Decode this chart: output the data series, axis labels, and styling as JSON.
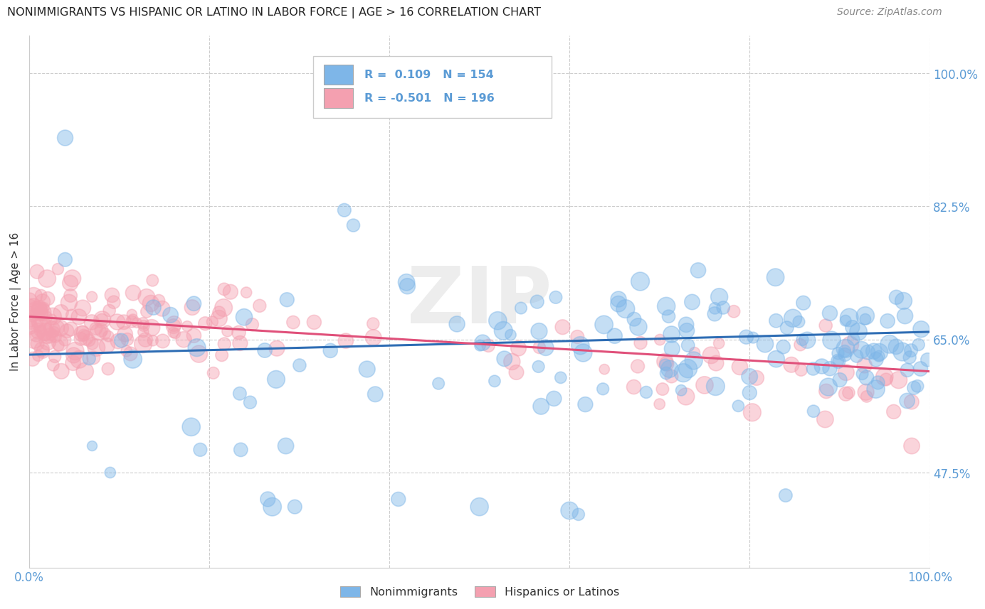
{
  "title": "NONIMMIGRANTS VS HISPANIC OR LATINO IN LABOR FORCE | AGE > 16 CORRELATION CHART",
  "source": "Source: ZipAtlas.com",
  "ylabel": "In Labor Force | Age > 16",
  "xlim": [
    0.0,
    1.0
  ],
  "ylim": [
    0.35,
    1.05
  ],
  "yticks": [
    0.475,
    0.65,
    0.825,
    1.0
  ],
  "ytick_labels": [
    "47.5%",
    "65.0%",
    "82.5%",
    "100.0%"
  ],
  "xticks": [
    0.0,
    0.2,
    0.4,
    0.6,
    0.8,
    1.0
  ],
  "xtick_labels": [
    "0.0%",
    "",
    "",
    "",
    "",
    "100.0%"
  ],
  "watermark": "ZIP",
  "blue_color": "#7EB6E8",
  "pink_color": "#F4A0B0",
  "blue_line_color": "#2E6DB4",
  "pink_line_color": "#E0507A",
  "axis_label_color": "#5B9BD5",
  "legend_R_blue": "0.109",
  "legend_N_blue": "154",
  "legend_R_pink": "-0.501",
  "legend_N_pink": "196",
  "n_blue": 154,
  "n_pink": 196,
  "blue_trend_y_start": 0.63,
  "blue_trend_y_end": 0.66,
  "pink_trend_y_start": 0.68,
  "pink_trend_y_end": 0.608,
  "background_color": "#FFFFFF",
  "grid_color": "#CCCCCC"
}
